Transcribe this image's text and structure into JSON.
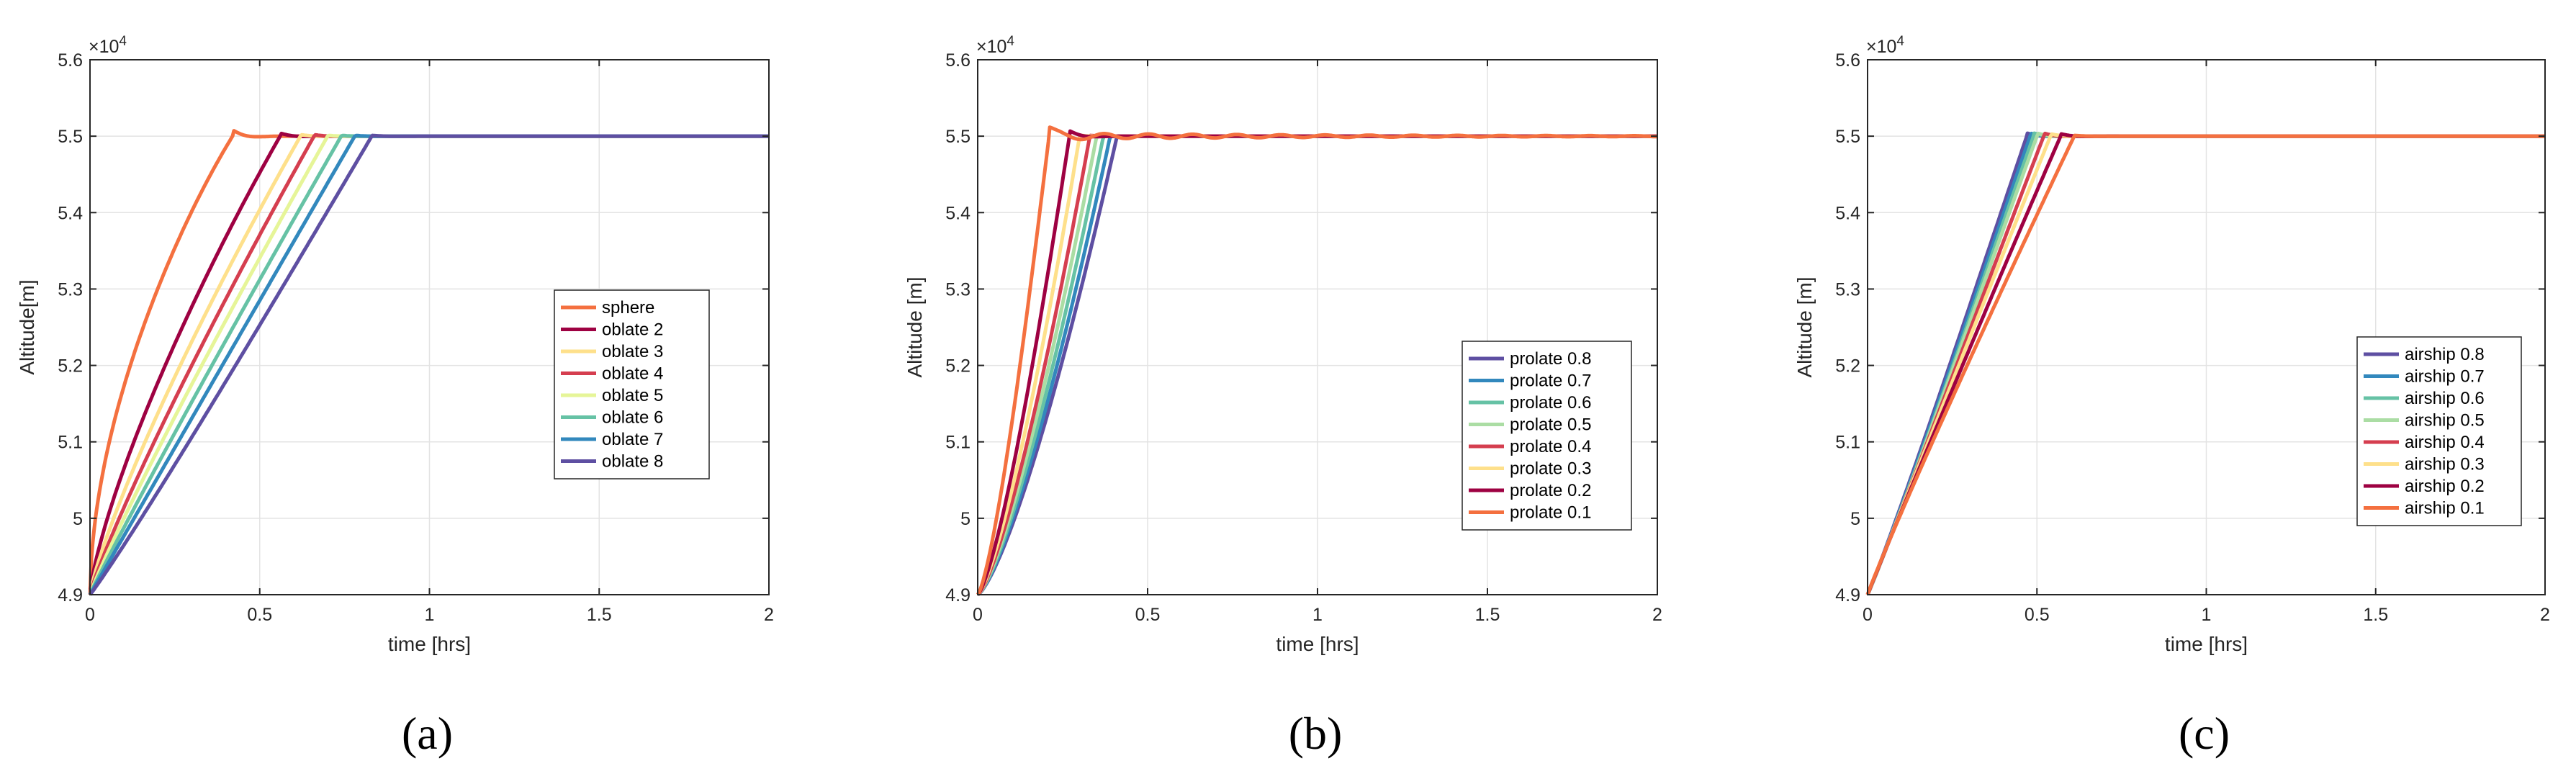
{
  "chart_data": [
    {
      "id": "a",
      "type": "line",
      "panel_label": "(a)",
      "xlabel": "time [hrs]",
      "ylabel": "Altitude[m]",
      "exponent_base": "×10",
      "exponent_power": "4",
      "xlim": [
        0,
        2
      ],
      "ylim": [
        4.9,
        5.6
      ],
      "xticks": [
        0,
        0.5,
        1,
        1.5,
        2
      ],
      "xtick_labels": [
        "0",
        "0.5",
        "1",
        "1.5",
        "2"
      ],
      "yticks": [
        4.9,
        5.0,
        5.1,
        5.2,
        5.3,
        5.4,
        5.5,
        5.6
      ],
      "ytick_labels": [
        "4.9",
        "5",
        "5.1",
        "5.2",
        "5.3",
        "5.4",
        "5.5",
        "5.6"
      ],
      "grid": true,
      "legend_position": "center-right",
      "series": [
        {
          "name": "sphere",
          "color": "#F4703F",
          "t_reach": 0.42,
          "curve": 0.55,
          "overshoot": 0.008
        },
        {
          "name": "oblate 2",
          "color": "#9E0142",
          "t_reach": 0.56,
          "curve": 0.75,
          "overshoot": 0.004
        },
        {
          "name": "oblate 3",
          "color": "#FEE08B",
          "t_reach": 0.62,
          "curve": 0.82,
          "overshoot": 0.002
        },
        {
          "name": "oblate 4",
          "color": "#D53E4F",
          "t_reach": 0.66,
          "curve": 0.88,
          "overshoot": 0.002
        },
        {
          "name": "oblate 5",
          "color": "#E6F598",
          "t_reach": 0.7,
          "curve": 0.92,
          "overshoot": 0.001
        },
        {
          "name": "oblate 6",
          "color": "#66C2A5",
          "t_reach": 0.74,
          "curve": 0.96,
          "overshoot": 0.001
        },
        {
          "name": "oblate 7",
          "color": "#3288BD",
          "t_reach": 0.78,
          "curve": 1.0,
          "overshoot": 0.001
        },
        {
          "name": "oblate 8",
          "color": "#5E4FA2",
          "t_reach": 0.83,
          "curve": 1.05,
          "overshoot": 0.001
        }
      ]
    },
    {
      "id": "b",
      "type": "line",
      "panel_label": "(b)",
      "xlabel": "time [hrs]",
      "ylabel": "Altitude [m]",
      "exponent_base": "×10",
      "exponent_power": "4",
      "xlim": [
        0,
        2
      ],
      "ylim": [
        4.9,
        5.6
      ],
      "xticks": [
        0,
        0.5,
        1,
        1.5,
        2
      ],
      "xtick_labels": [
        "0",
        "0.5",
        "1",
        "1.5",
        "2"
      ],
      "yticks": [
        4.9,
        5.0,
        5.1,
        5.2,
        5.3,
        5.4,
        5.5,
        5.6
      ],
      "ytick_labels": [
        "4.9",
        "5",
        "5.1",
        "5.2",
        "5.3",
        "5.4",
        "5.5",
        "5.6"
      ],
      "grid": true,
      "legend_position": "lower-right",
      "series": [
        {
          "name": "prolate 0.8",
          "color": "#5E4FA2",
          "t_reach": 0.41,
          "curve": 1.35,
          "overshoot": 0.0,
          "osc": 0.0
        },
        {
          "name": "prolate 0.7",
          "color": "#3288BD",
          "t_reach": 0.39,
          "curve": 1.35,
          "overshoot": 0.0,
          "osc": 0.0
        },
        {
          "name": "prolate 0.6",
          "color": "#66C2A5",
          "t_reach": 0.37,
          "curve": 1.35,
          "overshoot": 0.0,
          "osc": 0.0
        },
        {
          "name": "prolate 0.5",
          "color": "#ABDDA4",
          "t_reach": 0.35,
          "curve": 1.35,
          "overshoot": 0.0,
          "osc": 0.0
        },
        {
          "name": "prolate 0.4",
          "color": "#D53E4F",
          "t_reach": 0.33,
          "curve": 1.35,
          "overshoot": 0.001,
          "osc": 0.0
        },
        {
          "name": "prolate 0.3",
          "color": "#FEE08B",
          "t_reach": 0.3,
          "curve": 1.35,
          "overshoot": 0.001,
          "osc": 0.0
        },
        {
          "name": "prolate 0.2",
          "color": "#9E0142",
          "t_reach": 0.27,
          "curve": 1.35,
          "overshoot": 0.007,
          "osc": 0.0
        },
        {
          "name": "prolate 0.1",
          "color": "#F4703F",
          "t_reach": 0.21,
          "curve": 1.35,
          "overshoot": 0.012,
          "osc": 0.004
        }
      ]
    },
    {
      "id": "c",
      "type": "line",
      "panel_label": "(c)",
      "xlabel": "time [hrs]",
      "ylabel": "Altitude [m]",
      "exponent_base": "×10",
      "exponent_power": "4",
      "xlim": [
        0,
        2
      ],
      "ylim": [
        4.9,
        5.6
      ],
      "xticks": [
        0,
        0.5,
        1,
        1.5,
        2
      ],
      "xtick_labels": [
        "0",
        "0.5",
        "1",
        "1.5",
        "2"
      ],
      "yticks": [
        4.9,
        5.0,
        5.1,
        5.2,
        5.3,
        5.4,
        5.5,
        5.6
      ],
      "ytick_labels": [
        "4.9",
        "5",
        "5.1",
        "5.2",
        "5.3",
        "5.4",
        "5.5",
        "5.6"
      ],
      "grid": true,
      "legend_position": "lower-right",
      "series": [
        {
          "name": "airship 0.8",
          "color": "#5E4FA2",
          "t_reach": 0.47,
          "curve": 1.05,
          "overshoot": 0.004
        },
        {
          "name": "airship 0.7",
          "color": "#3288BD",
          "t_reach": 0.48,
          "curve": 1.05,
          "overshoot": 0.004
        },
        {
          "name": "airship 0.6",
          "color": "#66C2A5",
          "t_reach": 0.49,
          "curve": 1.05,
          "overshoot": 0.004
        },
        {
          "name": "airship 0.5",
          "color": "#ABDDA4",
          "t_reach": 0.5,
          "curve": 1.04,
          "overshoot": 0.004
        },
        {
          "name": "airship 0.4",
          "color": "#D53E4F",
          "t_reach": 0.52,
          "curve": 1.02,
          "overshoot": 0.004
        },
        {
          "name": "airship 0.3",
          "color": "#FEE08B",
          "t_reach": 0.54,
          "curve": 1.0,
          "overshoot": 0.003
        },
        {
          "name": "airship 0.2",
          "color": "#9E0142",
          "t_reach": 0.57,
          "curve": 0.98,
          "overshoot": 0.003
        },
        {
          "name": "airship 0.1",
          "color": "#F4703F",
          "t_reach": 0.61,
          "curve": 0.95,
          "overshoot": 0.001
        }
      ]
    }
  ]
}
